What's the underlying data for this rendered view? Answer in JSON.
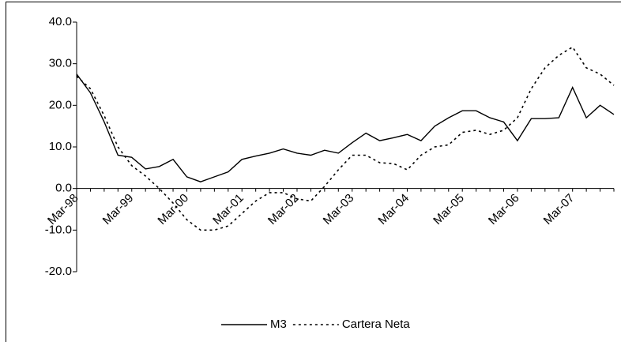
{
  "chart_data": {
    "type": "line",
    "categories": [
      "Mar-98",
      null,
      null,
      null,
      "Mar-99",
      null,
      null,
      null,
      "Mar-00",
      null,
      null,
      null,
      "Mar-01",
      null,
      null,
      null,
      "Mar-02",
      null,
      null,
      null,
      "Mar-03",
      null,
      null,
      null,
      "Mar-04",
      null,
      null,
      null,
      "Mar-05",
      null,
      null,
      null,
      "Mar-06",
      null,
      null,
      null,
      "Mar-07",
      null,
      null,
      null
    ],
    "series": [
      {
        "name": "M3",
        "color": "#000000",
        "dash": "solid",
        "values": [
          27.5,
          23,
          16,
          8,
          7.5,
          4.7,
          5.3,
          7,
          2.8,
          1.6,
          2.8,
          4,
          7,
          7.8,
          8.5,
          9.5,
          8.5,
          8,
          9.2,
          8.5,
          11,
          13.3,
          11.5,
          12.2,
          13,
          11.5,
          15,
          17,
          18.7,
          18.7,
          17,
          16,
          11.5,
          16.8,
          16.8,
          17,
          24.3,
          17,
          20,
          17.8
        ]
      },
      {
        "name": "Cartera Neta",
        "color": "#000000",
        "dash": "dotted",
        "values": [
          27,
          24,
          17.5,
          10,
          5.5,
          3,
          0,
          -3.5,
          -7.5,
          -10,
          -10,
          -9,
          -6,
          -3,
          -1,
          -1,
          -2.5,
          -3,
          0.5,
          4.5,
          8,
          8,
          6.2,
          6,
          4.5,
          8,
          10,
          10.5,
          13.5,
          14,
          13,
          14,
          17,
          24,
          29,
          32,
          34,
          29,
          27.5,
          24.8
        ]
      }
    ],
    "ylim": [
      -20,
      40
    ],
    "yticks": [
      {
        "value": -20,
        "label": "-20.0"
      },
      {
        "value": -10,
        "label": "-10.0"
      },
      {
        "value": 0,
        "label": "0.0"
      },
      {
        "value": 10,
        "label": "10.0"
      },
      {
        "value": 20,
        "label": "20.0"
      },
      {
        "value": 30,
        "label": "30.0"
      },
      {
        "value": 40,
        "label": "40.0"
      }
    ],
    "legend": "bottom"
  }
}
